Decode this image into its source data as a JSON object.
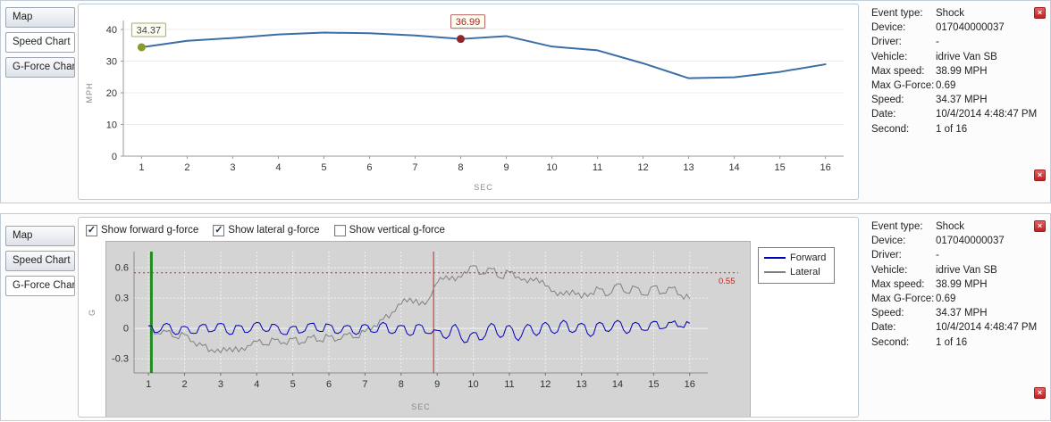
{
  "tabs": [
    "Map",
    "Speed Chart",
    "G-Force Chart"
  ],
  "speed_panel": {
    "selected_tab": "Speed Chart"
  },
  "gforce_panel": {
    "selected_tab": "G-Force Chart",
    "checkboxes": [
      {
        "label": "Show forward g-force",
        "checked": true
      },
      {
        "label": "Show lateral g-force",
        "checked": true
      },
      {
        "label": "Show vertical g-force",
        "checked": false
      }
    ],
    "legend": [
      {
        "label": "Forward",
        "color": "#0000bb"
      },
      {
        "label": "Lateral",
        "color": "#808080"
      }
    ]
  },
  "info_panel": {
    "close_icon": "×",
    "rows": [
      {
        "label": "Event type:",
        "value": "Shock"
      },
      {
        "label": "Device:",
        "value": "017040000037"
      },
      {
        "label": "Driver:",
        "value": "-"
      },
      {
        "label": "Vehicle:",
        "value": "idrive Van SB"
      },
      {
        "label": "Max speed:",
        "value": "38.99 MPH"
      },
      {
        "label": "Max G-Force:",
        "value": "0.69"
      },
      {
        "label": "Speed:",
        "value": "34.37 MPH"
      },
      {
        "label": "Date:",
        "value": "10/4/2014 4:48:47 PM"
      },
      {
        "label": "Second:",
        "value": "1 of 16"
      }
    ]
  },
  "chart_data": [
    {
      "type": "line",
      "title": "Speed Chart",
      "xlabel": "SEC",
      "ylabel": "MPH",
      "xlim": [
        0.6,
        16.4
      ],
      "ylim": [
        0,
        40
      ],
      "xticks": [
        1,
        2,
        3,
        4,
        5,
        6,
        7,
        8,
        9,
        10,
        11,
        12,
        13,
        14,
        15,
        16
      ],
      "yticks": [
        0,
        10,
        20,
        30,
        40
      ],
      "series": [
        {
          "name": "Speed",
          "color": "#3a6ea5",
          "x": [
            1,
            2,
            3,
            4,
            5,
            6,
            7,
            8,
            9,
            10,
            11,
            12,
            13,
            14,
            15,
            16
          ],
          "values": [
            34.37,
            36.4,
            37.3,
            38.4,
            39.0,
            38.8,
            38.1,
            36.99,
            37.9,
            34.6,
            33.4,
            29.3,
            24.6,
            24.9,
            26.6,
            29.0
          ]
        }
      ],
      "annotations": [
        {
          "x": 1,
          "y": 34.37,
          "label": "34.37",
          "dot_color": "#8a9a2e",
          "border_color": "#a8a878",
          "text_color": "#444444"
        },
        {
          "x": 8,
          "y": 36.99,
          "label": "36.99",
          "dot_color": "#8e2727",
          "border_color": "#bb6666",
          "text_color": "#aa2222"
        }
      ]
    },
    {
      "type": "line",
      "title": "G-Force Chart",
      "xlabel": "SEC",
      "ylabel": "G",
      "xlim": [
        0.6,
        16.5
      ],
      "ylim": [
        -0.44,
        0.76
      ],
      "xticks": [
        1,
        2,
        3,
        4,
        5,
        6,
        7,
        8,
        9,
        10,
        11,
        12,
        13,
        14,
        15,
        16
      ],
      "yticks": [
        -0.3,
        0,
        0.3,
        0.6
      ],
      "x_start": 1,
      "x_step": 0.25,
      "series": [
        {
          "name": "Forward",
          "color": "#0000bb",
          "noise_amp": 0.02,
          "values": [
            0.03,
            -0.04,
            0.05,
            -0.06,
            0.02,
            -0.05,
            0.04,
            -0.03,
            0.05,
            -0.06,
            0.03,
            -0.04,
            0.06,
            -0.03,
            0.04,
            -0.06,
            0.02,
            -0.04,
            0.05,
            -0.03,
            0.04,
            -0.05,
            0.03,
            -0.06,
            0.04,
            -0.04,
            0.06,
            -0.05,
            0.03,
            -0.07,
            0.04,
            -0.05,
            -0.02,
            -0.1,
            0.04,
            -0.14,
            -0.04,
            -0.11,
            0.05,
            -0.09,
            0.03,
            -0.12,
            0.04,
            -0.07,
            0.06,
            -0.05,
            0.08,
            -0.04,
            0.05,
            -0.08,
            0.06,
            -0.03,
            0.08,
            -0.05,
            0.06,
            -0.02,
            0.07,
            0.0,
            0.06,
            0.02,
            0.05
          ]
        },
        {
          "name": "Lateral",
          "color": "#808080",
          "noise_amp": 0.025,
          "values": [
            0.02,
            -0.05,
            -0.03,
            -0.09,
            -0.06,
            -0.13,
            -0.17,
            -0.21,
            -0.24,
            -0.19,
            -0.23,
            -0.17,
            -0.13,
            -0.16,
            -0.11,
            -0.14,
            -0.1,
            -0.14,
            -0.09,
            -0.12,
            -0.08,
            -0.11,
            -0.06,
            -0.09,
            -0.03,
            0.03,
            0.09,
            0.16,
            0.24,
            0.3,
            0.23,
            0.28,
            0.45,
            0.52,
            0.47,
            0.56,
            0.62,
            0.54,
            0.59,
            0.5,
            0.56,
            0.51,
            0.45,
            0.5,
            0.42,
            0.37,
            0.33,
            0.38,
            0.3,
            0.35,
            0.39,
            0.33,
            0.44,
            0.35,
            0.41,
            0.33,
            0.42,
            0.35,
            0.4,
            0.33,
            0.29
          ]
        }
      ],
      "threshold": {
        "y": 0.55,
        "label": "0.55",
        "color": "#cc2222"
      },
      "event_markers": [
        {
          "x": 1.08,
          "color": "#1e8a1e",
          "width": 3,
          "name": "event-marker-green"
        },
        {
          "x": 8.9,
          "color": "#cc2222",
          "width": 1,
          "name": "event-marker-red"
        }
      ]
    }
  ]
}
